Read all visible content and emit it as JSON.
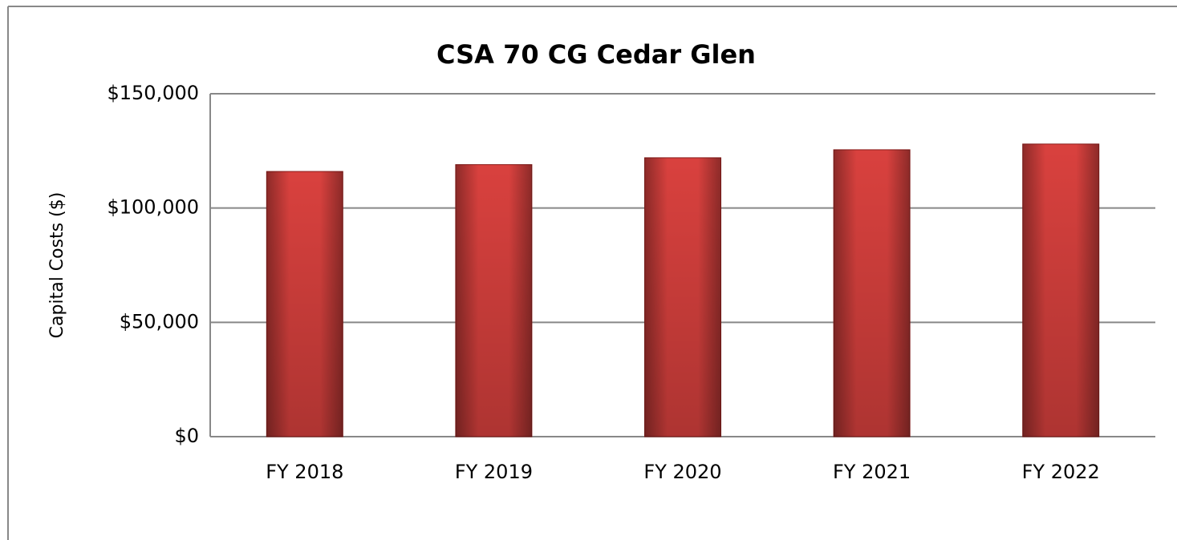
{
  "chart_data": {
    "type": "bar",
    "title": "CSA 70 CG Cedar Glen",
    "y_label": "Capital Costs ($)",
    "categories": [
      "FY 2018",
      "FY 2019",
      "FY 2020",
      "FY 2021",
      "FY 2022"
    ],
    "values": [
      116000,
      119000,
      122000,
      125500,
      128000
    ],
    "color": "#d9413e",
    "ylim": [
      0,
      150000
    ],
    "yticks": [
      {
        "value": 0,
        "label": "$0"
      },
      {
        "value": 50000,
        "label": "$50,000"
      },
      {
        "value": 100000,
        "label": "$100,000"
      },
      {
        "value": 150000,
        "label": "$150,000"
      }
    ],
    "grid": true
  }
}
